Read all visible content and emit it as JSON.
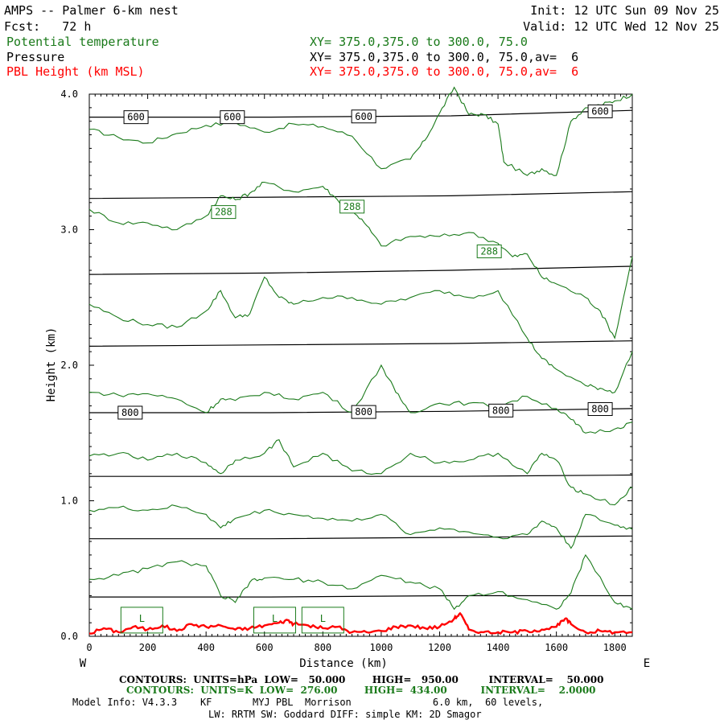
{
  "header": {
    "title": "AMPS -- Palmer 6-km nest",
    "fcst": "Fcst:   72 h",
    "init": "Init: 12 UTC Sun 09 Nov 25",
    "valid": "Valid: 12 UTC Wed 12 Nov 25"
  },
  "legend": [
    {
      "label": "Potential temperature",
      "xy": "XY= 375.0,375.0 to 300.0, 75.0",
      "color": "#1a7a1a"
    },
    {
      "label": "Pressure",
      "xy": "XY= 375.0,375.0 to 300.0, 75.0,av=  6",
      "color": "#000000"
    },
    {
      "label": "PBL Height (km MSL)",
      "xy": "XY= 375.0,375.0 to 300.0, 75.0,av=  6",
      "color": "#ff0000"
    }
  ],
  "footer": {
    "contours_black": "CONTOURS:  UNITS=hPa  LOW=   50.000        HIGH=   950.00         INTERVAL=    50.000",
    "contours_green": "CONTOURS:  UNITS=K  LOW=  276.00        HIGH=  434.00          INTERVAL=    2.0000",
    "model_info": "Model Info: V4.3.3    KF       MYJ PBL  Morrison              6.0 km,  60 levels,",
    "model_info2": "LW: RRTM SW: Goddard DIFF: simple KM: 2D Smagor"
  },
  "chart_data": {
    "type": "line",
    "xlabel": "Distance (km)",
    "ylabel": "Height (km)",
    "xlim": [
      0,
      1860
    ],
    "ylim": [
      0,
      4.0
    ],
    "x_ticks": [
      "0",
      "200",
      "400",
      "600",
      "800",
      "1000",
      "1200",
      "1400",
      "1600",
      "1800"
    ],
    "x_tick_values": [
      0,
      200,
      400,
      600,
      800,
      1000,
      1200,
      1400,
      1600,
      1800
    ],
    "y_ticks": [
      "0.0",
      "1.0",
      "2.0",
      "3.0",
      "4.0"
    ],
    "y_tick_values": [
      0,
      1,
      2,
      3,
      4
    ],
    "left_end": "W",
    "right_end": "E",
    "series": [
      {
        "name": "Pressure",
        "color": "#000000",
        "lines": [
          {
            "y": [
              3.83,
              3.83,
              3.84,
              3.88
            ],
            "label": "600",
            "label_x": [
              160,
              490,
              940,
              1750
            ]
          },
          {
            "y": [
              3.23,
              3.24,
              3.25,
              3.28
            ]
          },
          {
            "y": [
              2.67,
              2.68,
              2.7,
              2.73
            ]
          },
          {
            "y": [
              2.14,
              2.15,
              2.16,
              2.18
            ]
          },
          {
            "y": [
              1.65,
              1.65,
              1.66,
              1.68
            ],
            "label": "800",
            "label_x": [
              140,
              940,
              1410,
              1750
            ]
          },
          {
            "y": [
              1.18,
              1.18,
              1.18,
              1.19
            ]
          },
          {
            "y": [
              0.72,
              0.72,
              0.73,
              0.74
            ]
          },
          {
            "y": [
              0.29,
              0.29,
              0.3,
              0.3
            ]
          }
        ]
      },
      {
        "name": "Potential temperature",
        "color": "#1a7a1a",
        "lines": [
          {
            "x": [
              0,
              100,
              200,
              300,
              400,
              500,
              600,
              700,
              800,
              900,
              1000,
              1100,
              1150,
              1200,
              1250,
              1300,
              1350,
              1400,
              1420,
              1500,
              1550,
              1600,
              1650,
              1700,
              1750,
              1800,
              1860
            ],
            "y": [
              3.74,
              3.68,
              3.64,
              3.71,
              3.77,
              3.79,
              3.72,
              3.78,
              3.76,
              3.69,
              3.45,
              3.52,
              3.66,
              3.86,
              4.05,
              3.85,
              3.85,
              3.78,
              3.5,
              3.4,
              3.45,
              3.4,
              3.8,
              3.9,
              3.92,
              3.95,
              4.0
            ]
          },
          {
            "x": [
              0,
              100,
              200,
              300,
              400,
              450,
              500,
              550,
              600,
              700,
              800,
              850,
              900,
              950,
              1000,
              1100,
              1200,
              1300,
              1400,
              1450,
              1500,
              1550,
              1600,
              1700,
              1750,
              1800,
              1860
            ],
            "y": [
              3.15,
              3.05,
              3.05,
              3.0,
              3.1,
              3.25,
              3.22,
              3.27,
              3.35,
              3.28,
              3.32,
              3.22,
              3.15,
              3.03,
              2.88,
              2.95,
              2.95,
              2.98,
              2.9,
              2.8,
              2.82,
              2.65,
              2.6,
              2.5,
              2.4,
              2.2,
              2.8
            ]
          },
          {
            "x": [
              0,
              100,
              200,
              300,
              400,
              450,
              500,
              550,
              600,
              650,
              700,
              800,
              900,
              1000,
              1100,
              1200,
              1300,
              1400,
              1500,
              1550,
              1600,
              1700,
              1750,
              1800,
              1860
            ],
            "y": [
              2.45,
              2.35,
              2.3,
              2.28,
              2.4,
              2.55,
              2.35,
              2.38,
              2.65,
              2.5,
              2.45,
              2.5,
              2.5,
              2.45,
              2.5,
              2.55,
              2.5,
              2.55,
              2.2,
              2.05,
              1.97,
              1.85,
              1.83,
              1.8,
              2.1
            ]
          },
          {
            "x": [
              0,
              100,
              200,
              300,
              400,
              450,
              500,
              600,
              700,
              800,
              900,
              1000,
              1050,
              1100,
              1200,
              1300,
              1400,
              1500,
              1600,
              1650,
              1700,
              1800,
              1860
            ],
            "y": [
              1.8,
              1.78,
              1.79,
              1.75,
              1.65,
              1.75,
              1.74,
              1.8,
              1.75,
              1.8,
              1.65,
              2.0,
              1.8,
              1.65,
              1.72,
              1.72,
              1.7,
              1.77,
              1.68,
              1.6,
              1.5,
              1.53,
              1.58
            ]
          },
          {
            "x": [
              0,
              100,
              200,
              300,
              400,
              450,
              500,
              600,
              650,
              700,
              800,
              900,
              1000,
              1100,
              1200,
              1300,
              1400,
              1500,
              1550,
              1600,
              1650,
              1700,
              1800,
              1860
            ],
            "y": [
              1.33,
              1.35,
              1.3,
              1.35,
              1.28,
              1.2,
              1.3,
              1.35,
              1.45,
              1.25,
              1.35,
              1.22,
              1.2,
              1.35,
              1.28,
              1.3,
              1.35,
              1.2,
              1.35,
              1.3,
              1.1,
              1.05,
              0.97,
              1.1
            ]
          },
          {
            "x": [
              0,
              100,
              200,
              300,
              400,
              450,
              500,
              600,
              700,
              800,
              900,
              1000,
              1100,
              1200,
              1300,
              1400,
              1500,
              1550,
              1600,
              1650,
              1700,
              1800,
              1860
            ],
            "y": [
              0.93,
              0.95,
              0.93,
              0.96,
              0.9,
              0.8,
              0.87,
              0.93,
              0.9,
              0.87,
              0.85,
              0.9,
              0.75,
              0.8,
              0.77,
              0.73,
              0.75,
              0.85,
              0.8,
              0.65,
              0.9,
              0.82,
              0.79
            ]
          },
          {
            "x": [
              0,
              100,
              200,
              300,
              400,
              450,
              500,
              550,
              600,
              700,
              800,
              900,
              1000,
              1100,
              1200,
              1250,
              1300,
              1400,
              1500,
              1600,
              1650,
              1700,
              1800,
              1860
            ],
            "y": [
              0.42,
              0.45,
              0.5,
              0.55,
              0.52,
              0.3,
              0.25,
              0.4,
              0.43,
              0.42,
              0.4,
              0.35,
              0.45,
              0.4,
              0.35,
              0.2,
              0.3,
              0.33,
              0.27,
              0.2,
              0.32,
              0.6,
              0.25,
              0.2
            ]
          }
        ],
        "labels": [
          {
            "text": "288",
            "x": 460,
            "y": 3.13
          },
          {
            "text": "288",
            "x": 900,
            "y": 3.17
          },
          {
            "text": "288",
            "x": 1370,
            "y": 2.84
          }
        ]
      },
      {
        "name": "PBL Height (km MSL)",
        "color": "#ff0000",
        "x": [
          0,
          50,
          100,
          150,
          200,
          250,
          300,
          350,
          400,
          450,
          500,
          550,
          600,
          650,
          680,
          700,
          750,
          800,
          850,
          900,
          950,
          1000,
          1050,
          1100,
          1150,
          1200,
          1250,
          1270,
          1300,
          1350,
          1400,
          1450,
          1500,
          1550,
          1600,
          1630,
          1650,
          1700,
          1750,
          1800,
          1860
        ],
        "y": [
          0.02,
          0.06,
          0.03,
          0.07,
          0.05,
          0.08,
          0.04,
          0.09,
          0.07,
          0.08,
          0.05,
          0.06,
          0.08,
          0.1,
          0.12,
          0.09,
          0.08,
          0.06,
          0.07,
          0.03,
          0.03,
          0.04,
          0.07,
          0.08,
          0.06,
          0.07,
          0.13,
          0.17,
          0.05,
          0.03,
          0.03,
          0.03,
          0.04,
          0.05,
          0.07,
          0.13,
          0.09,
          0.03,
          0.04,
          0.03,
          0.03
        ]
      }
    ],
    "low_labels": [
      {
        "text": "L",
        "x": 180
      },
      {
        "text": "L",
        "x": 635
      },
      {
        "text": "L",
        "x": 800
      }
    ]
  }
}
